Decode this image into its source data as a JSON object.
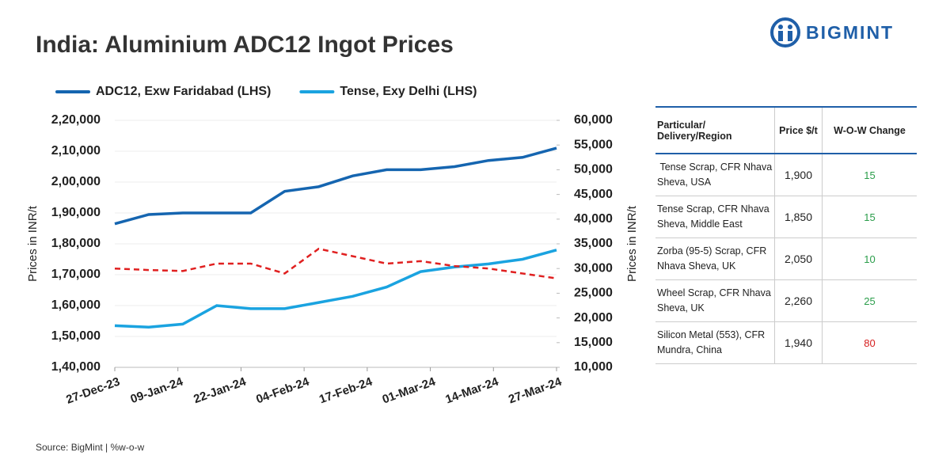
{
  "header": {
    "logo": "BIGMINT"
  },
  "chart_data": {
    "type": "line",
    "title": "India: Aluminium ADC12 Ingot Prices",
    "y_label": "Prices in INR/t",
    "y2_label": "Prices in INR/t",
    "x": [
      "27-Dec-23",
      "03-Jan-24",
      "10-Jan-24",
      "17-Jan-24",
      "24-Jan-24",
      "31-Jan-24",
      "07-Feb-24",
      "14-Feb-24",
      "21-Feb-24",
      "28-Feb-24",
      "06-Mar-24",
      "13-Mar-24",
      "20-Mar-24",
      "27-Mar-24"
    ],
    "xlim": [
      "27-Dec-23",
      "27-Mar-24"
    ],
    "xticks": [
      "27-Dec-23",
      "09-Jan-24",
      "22-Jan-24",
      "04-Feb-24",
      "17-Feb-24",
      "01-Mar-24",
      "14-Mar-24",
      "27-Mar-24"
    ],
    "ylim": [
      140000,
      220000
    ],
    "yticks": [
      {
        "value": 140000,
        "label": "1,40,000"
      },
      {
        "value": 150000,
        "label": "1,50,000"
      },
      {
        "value": 160000,
        "label": "1,60,000"
      },
      {
        "value": 170000,
        "label": "1,70,000"
      },
      {
        "value": 180000,
        "label": "1,80,000"
      },
      {
        "value": 190000,
        "label": "1,90,000"
      },
      {
        "value": 200000,
        "label": "2,00,000"
      },
      {
        "value": 210000,
        "label": "2,10,000"
      },
      {
        "value": 220000,
        "label": "2,20,000"
      }
    ],
    "y2lim": [
      10000,
      60000
    ],
    "y2ticks": [
      {
        "value": 10000,
        "label": "10,000"
      },
      {
        "value": 15000,
        "label": "15,000"
      },
      {
        "value": 20000,
        "label": "20,000"
      },
      {
        "value": 25000,
        "label": "25,000"
      },
      {
        "value": 30000,
        "label": "30,000"
      },
      {
        "value": 35000,
        "label": "35,000"
      },
      {
        "value": 40000,
        "label": "40,000"
      },
      {
        "value": 45000,
        "label": "45,000"
      },
      {
        "value": 50000,
        "label": "50,000"
      },
      {
        "value": 55000,
        "label": "55,000"
      },
      {
        "value": 60000,
        "label": "60,000"
      }
    ],
    "series": [
      {
        "name": "ADC12, Exw Faridabad (LHS)",
        "color": "#1565b0",
        "values": [
          186500,
          189500,
          190000,
          190000,
          190000,
          197000,
          198500,
          202000,
          204000,
          204000,
          205000,
          207000,
          208000,
          211000
        ]
      },
      {
        "name": "Tense, Exy Delhi (LHS)",
        "color": "#1aa3e0",
        "values": [
          153500,
          153000,
          154000,
          160000,
          159000,
          159000,
          161000,
          163000,
          166000,
          171000,
          172500,
          173500,
          175000,
          178000
        ]
      },
      {
        "color": "#e02020",
        "dashed": true,
        "axis": "y2",
        "values": [
          30000,
          29700,
          29500,
          31000,
          31000,
          29000,
          34000,
          32500,
          31000,
          31500,
          30500,
          30000,
          29000,
          28000
        ]
      }
    ]
  },
  "table": {
    "columns": [
      "Particular/ Delivery/Region",
      "Price $/t",
      "W-O-W Change"
    ],
    "rows": [
      [
        " Tense Scrap, CFR Nhava Sheva, USA",
        "1,900",
        "15"
      ],
      [
        "Tense Scrap, CFR Nhava Sheva, Middle East",
        "1,850",
        "15"
      ],
      [
        "Zorba (95-5) Scrap, CFR Nhava Sheva, UK",
        "2,050",
        "10"
      ],
      [
        "Wheel Scrap, CFR Nhava Sheva, UK",
        "2,260",
        "25"
      ],
      [
        "Silicon Metal (553), CFR Mundra, China",
        "1,940",
        "80"
      ]
    ],
    "change_colors": [
      "#2a9d4a",
      "#2a9d4a",
      "#2a9d4a",
      "#2a9d4a",
      "#d62020"
    ]
  },
  "source": "Source: BigMint | %w-o-w"
}
